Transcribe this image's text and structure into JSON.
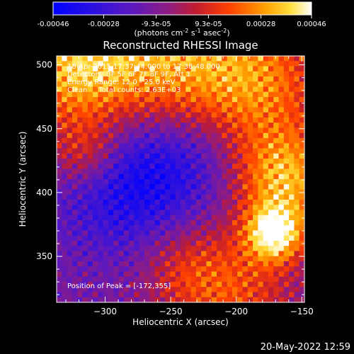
{
  "colorbar": {
    "ticks": [
      "-0.00046",
      "-0.00028",
      "-9.3e-05",
      "9.3e-05",
      "0.00028",
      "0.00046"
    ],
    "tick_values": [
      -0.00046,
      -0.00028,
      -9.3e-05,
      9.3e-05,
      0.00028,
      0.00046
    ],
    "range": [
      -0.00046,
      0.00046
    ],
    "units_base": "(photons cm",
    "units_sup1": "-2",
    "units_mid": " s",
    "units_sup2": "-1",
    "units_end": " asec",
    "units_sup3": "-2",
    "units_close": ")",
    "colors": [
      "#0000ff",
      "#3a1cd0",
      "#6a1cb0",
      "#a01c70",
      "#d02020",
      "#ff6a00",
      "#ffc000",
      "#ffffff"
    ]
  },
  "chart_data": {
    "type": "heatmap",
    "title": "Reconstructed RHESSI Image",
    "xlabel": "Heliocentric X (arcsec)",
    "ylabel": "Heliocentric Y (arcsec)",
    "xlim": [
      -337,
      -148
    ],
    "ylim": [
      314,
      507
    ],
    "xticks": [
      -300,
      -250,
      -200,
      -150
    ],
    "xtick_labels": [
      "−300",
      "−250",
      "−200",
      "−150"
    ],
    "yticks": [
      350,
      400,
      450,
      500
    ],
    "ytick_labels": [
      "350",
      "400",
      "450",
      "500"
    ],
    "peak": [
      -172,
      355
    ],
    "annotations": [
      "18-Apr-2015 17:37:44.000 to 17:38:48.000",
      "Detectors: 3F 5F 6F 7F 8F 9F, Att 1",
      "Energy Range: 12.0 - 25.0 keV",
      "Clean     Total counts: 2.63E+03",
      "Position of Peak = [-172,355]"
    ],
    "date_label": "20-May-2022 12:59"
  }
}
